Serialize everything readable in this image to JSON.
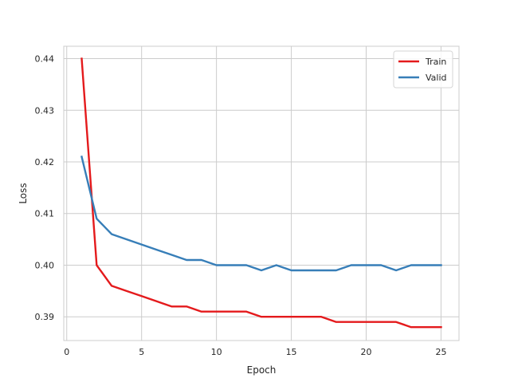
{
  "chart_data": {
    "type": "line",
    "title": "",
    "xlabel": "Epoch",
    "ylabel": "Loss",
    "xlim": [
      -0.2,
      26.2
    ],
    "ylim": [
      0.3854,
      0.4424
    ],
    "xticks": [
      0,
      5,
      10,
      15,
      20,
      25
    ],
    "yticks": [
      0.39,
      0.4,
      0.41,
      0.42,
      0.43,
      0.44
    ],
    "ytick_labels": [
      "0.39",
      "0.40",
      "0.41",
      "0.42",
      "0.43",
      "0.44"
    ],
    "grid": true,
    "legend_position": "top-right",
    "x": [
      1,
      2,
      3,
      4,
      5,
      6,
      7,
      8,
      9,
      10,
      11,
      12,
      13,
      14,
      15,
      16,
      17,
      18,
      19,
      20,
      21,
      22,
      23,
      24,
      25
    ],
    "series": [
      {
        "name": "Train",
        "color": "#e41a1c",
        "values": [
          0.44,
          0.4,
          0.396,
          0.395,
          0.394,
          0.393,
          0.392,
          0.392,
          0.391,
          0.391,
          0.391,
          0.391,
          0.39,
          0.39,
          0.39,
          0.39,
          0.39,
          0.389,
          0.389,
          0.389,
          0.389,
          0.389,
          0.388,
          0.388,
          0.388
        ]
      },
      {
        "name": "Valid",
        "color": "#377eb8",
        "values": [
          0.421,
          0.409,
          0.406,
          0.405,
          0.404,
          0.403,
          0.402,
          0.401,
          0.401,
          0.4,
          0.4,
          0.4,
          0.399,
          0.4,
          0.399,
          0.399,
          0.399,
          0.399,
          0.4,
          0.4,
          0.4,
          0.399,
          0.4,
          0.4,
          0.4
        ]
      }
    ]
  }
}
